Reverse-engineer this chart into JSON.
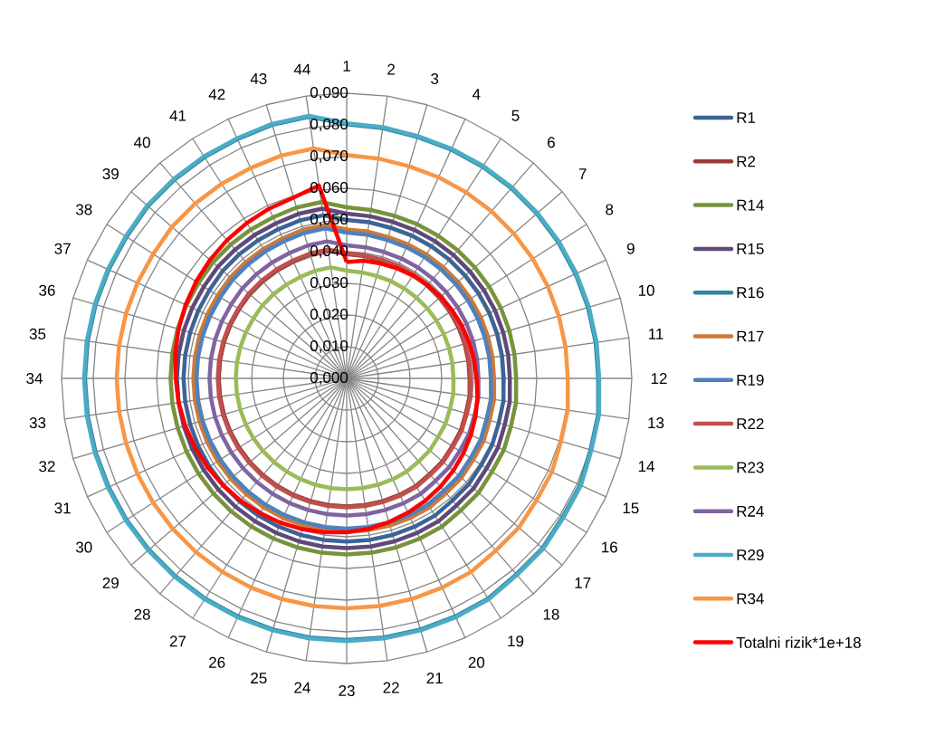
{
  "chart_data": {
    "type": "radar",
    "categories": [
      "1",
      "2",
      "3",
      "4",
      "5",
      "6",
      "7",
      "8",
      "9",
      "10",
      "11",
      "12",
      "13",
      "14",
      "15",
      "16",
      "17",
      "18",
      "19",
      "20",
      "21",
      "22",
      "23",
      "24",
      "25",
      "26",
      "27",
      "28",
      "29",
      "30",
      "31",
      "32",
      "33",
      "34",
      "35",
      "36",
      "37",
      "38",
      "39",
      "40",
      "41",
      "42",
      "43",
      "44"
    ],
    "ylim": [
      0,
      0.09
    ],
    "yticks": [
      {
        "value": 0,
        "label": "0,000"
      },
      {
        "value": 0.01,
        "label": "0,010"
      },
      {
        "value": 0.02,
        "label": "0,020"
      },
      {
        "value": 0.03,
        "label": "0,030"
      },
      {
        "value": 0.04,
        "label": "0,040"
      },
      {
        "value": 0.05,
        "label": "0,050"
      },
      {
        "value": 0.06,
        "label": "0,060"
      },
      {
        "value": 0.07,
        "label": "0,070"
      },
      {
        "value": 0.08,
        "label": "0,080"
      },
      {
        "value": 0.09,
        "label": "0,090"
      }
    ],
    "grid": true,
    "legend": "right",
    "series": [
      {
        "name": "R1",
        "color": "#3c6496",
        "values": [
          0.05,
          0.0498,
          0.0495,
          0.0495,
          0.0495,
          0.0495,
          0.0495,
          0.0495,
          0.0495,
          0.0495,
          0.0495,
          0.0495,
          0.05,
          0.05,
          0.0505,
          0.0505,
          0.051,
          0.051,
          0.0515,
          0.0515,
          0.0515,
          0.0515,
          0.0515,
          0.0515,
          0.0515,
          0.0515,
          0.0515,
          0.0515,
          0.0515,
          0.0515,
          0.0515,
          0.0515,
          0.0515,
          0.0515,
          0.0515,
          0.0515,
          0.0515,
          0.0515,
          0.0518,
          0.0518,
          0.0518,
          0.0518,
          0.052,
          0.052
        ]
      },
      {
        "name": "R2",
        "color": "#9a3b38",
        "values": [
          0.0392,
          0.039,
          0.0388,
          0.0388,
          0.0388,
          0.0388,
          0.0388,
          0.0388,
          0.0388,
          0.0388,
          0.0388,
          0.0388,
          0.0392,
          0.0392,
          0.0396,
          0.0396,
          0.04,
          0.04,
          0.0404,
          0.0404,
          0.0404,
          0.0404,
          0.0404,
          0.0404,
          0.0404,
          0.0404,
          0.0404,
          0.0404,
          0.0404,
          0.0404,
          0.0404,
          0.0404,
          0.0404,
          0.0404,
          0.0404,
          0.0404,
          0.0404,
          0.0404,
          0.0406,
          0.0406,
          0.0406,
          0.0406,
          0.0408,
          0.0408
        ]
      },
      {
        "name": "R14",
        "color": "#77933c",
        "values": [
          0.054,
          0.0537,
          0.0535,
          0.0535,
          0.0535,
          0.0535,
          0.0535,
          0.0535,
          0.0535,
          0.0535,
          0.0535,
          0.0535,
          0.054,
          0.054,
          0.0545,
          0.0545,
          0.0551,
          0.0551,
          0.0556,
          0.0556,
          0.0556,
          0.0556,
          0.0556,
          0.0556,
          0.0556,
          0.0556,
          0.0556,
          0.0556,
          0.0556,
          0.0556,
          0.0556,
          0.0556,
          0.0556,
          0.0556,
          0.0556,
          0.0556,
          0.0556,
          0.0556,
          0.0559,
          0.0559,
          0.0559,
          0.0559,
          0.0562,
          0.0562
        ]
      },
      {
        "name": "R15",
        "color": "#5f497a",
        "values": [
          0.052,
          0.0517,
          0.0515,
          0.0515,
          0.0515,
          0.0515,
          0.0515,
          0.0515,
          0.0515,
          0.0515,
          0.0515,
          0.0515,
          0.052,
          0.052,
          0.0525,
          0.0525,
          0.053,
          0.053,
          0.0536,
          0.0536,
          0.0536,
          0.0536,
          0.0536,
          0.0536,
          0.0536,
          0.0536,
          0.0536,
          0.0536,
          0.0536,
          0.0536,
          0.0536,
          0.0536,
          0.0536,
          0.0536,
          0.0536,
          0.0536,
          0.0536,
          0.0536,
          0.0538,
          0.0538,
          0.0538,
          0.0538,
          0.0541,
          0.0541
        ]
      },
      {
        "name": "R16",
        "color": "#31859c",
        "values": [
          0.0802,
          0.0798,
          0.0794,
          0.0794,
          0.0794,
          0.0794,
          0.0794,
          0.0794,
          0.0794,
          0.0794,
          0.0794,
          0.0794,
          0.0802,
          0.0802,
          0.081,
          0.081,
          0.0818,
          0.0818,
          0.0826,
          0.0826,
          0.0826,
          0.0826,
          0.0826,
          0.0826,
          0.0826,
          0.0826,
          0.0826,
          0.0826,
          0.0826,
          0.0826,
          0.0826,
          0.0826,
          0.0826,
          0.0826,
          0.0826,
          0.0826,
          0.0826,
          0.0826,
          0.083,
          0.083,
          0.083,
          0.083,
          0.0834,
          0.0834
        ]
      },
      {
        "name": "R17",
        "color": "#cc7a3a",
        "values": [
          0.047,
          0.0468,
          0.0465,
          0.0465,
          0.0465,
          0.0465,
          0.0465,
          0.0465,
          0.0465,
          0.0465,
          0.0465,
          0.0465,
          0.047,
          0.047,
          0.0475,
          0.0475,
          0.0479,
          0.0479,
          0.0484,
          0.0484,
          0.0484,
          0.0484,
          0.0484,
          0.0484,
          0.0484,
          0.0484,
          0.0484,
          0.0484,
          0.0484,
          0.0484,
          0.0484,
          0.0484,
          0.0484,
          0.0484,
          0.0484,
          0.0484,
          0.0484,
          0.0484,
          0.0486,
          0.0486,
          0.0486,
          0.0486,
          0.0489,
          0.0489
        ]
      },
      {
        "name": "R19",
        "color": "#4f81bd",
        "values": [
          0.046,
          0.0458,
          0.0455,
          0.0455,
          0.0455,
          0.0455,
          0.0455,
          0.0455,
          0.0455,
          0.0455,
          0.0455,
          0.0455,
          0.046,
          0.046,
          0.0465,
          0.0465,
          0.0469,
          0.0469,
          0.0474,
          0.0474,
          0.0474,
          0.0474,
          0.0474,
          0.0474,
          0.0474,
          0.0474,
          0.0474,
          0.0474,
          0.0474,
          0.0474,
          0.0474,
          0.0474,
          0.0474,
          0.0474,
          0.0474,
          0.0474,
          0.0474,
          0.0474,
          0.0476,
          0.0476,
          0.0476,
          0.0476,
          0.0478,
          0.0478
        ]
      },
      {
        "name": "R22",
        "color": "#c0504d",
        "values": [
          0.0395,
          0.0393,
          0.0391,
          0.0391,
          0.0391,
          0.0391,
          0.0391,
          0.0391,
          0.0391,
          0.0391,
          0.0391,
          0.0391,
          0.0395,
          0.0395,
          0.0399,
          0.0399,
          0.0403,
          0.0403,
          0.0407,
          0.0407,
          0.0407,
          0.0407,
          0.0407,
          0.0407,
          0.0407,
          0.0407,
          0.0407,
          0.0407,
          0.0407,
          0.0407,
          0.0407,
          0.0407,
          0.0407,
          0.0407,
          0.0407,
          0.0407,
          0.0407,
          0.0407,
          0.0409,
          0.0409,
          0.0409,
          0.0409,
          0.0411,
          0.0411
        ]
      },
      {
        "name": "R23",
        "color": "#9bbb59",
        "values": [
          0.034,
          0.0338,
          0.0337,
          0.0337,
          0.0337,
          0.0337,
          0.0337,
          0.0337,
          0.0337,
          0.0337,
          0.0337,
          0.0337,
          0.034,
          0.034,
          0.0343,
          0.0343,
          0.0347,
          0.0347,
          0.035,
          0.035,
          0.035,
          0.035,
          0.035,
          0.035,
          0.035,
          0.035,
          0.035,
          0.035,
          0.035,
          0.035,
          0.035,
          0.035,
          0.035,
          0.035,
          0.035,
          0.035,
          0.035,
          0.035,
          0.0352,
          0.0352,
          0.0352,
          0.0352,
          0.0354,
          0.0354
        ]
      },
      {
        "name": "R24",
        "color": "#8064a2",
        "values": [
          0.042,
          0.0418,
          0.0416,
          0.0416,
          0.0416,
          0.0416,
          0.0416,
          0.0416,
          0.0416,
          0.0416,
          0.0416,
          0.0416,
          0.042,
          0.042,
          0.0424,
          0.0424,
          0.0428,
          0.0428,
          0.0433,
          0.0433,
          0.0433,
          0.0433,
          0.0433,
          0.0433,
          0.0433,
          0.0433,
          0.0433,
          0.0433,
          0.0433,
          0.0433,
          0.0433,
          0.0433,
          0.0433,
          0.0433,
          0.0433,
          0.0433,
          0.0433,
          0.0433,
          0.0435,
          0.0435,
          0.0435,
          0.0435,
          0.0437,
          0.0437
        ]
      },
      {
        "name": "R29",
        "color": "#4bacc6",
        "values": [
          0.0805,
          0.0801,
          0.0797,
          0.0797,
          0.0797,
          0.0797,
          0.0797,
          0.0797,
          0.0797,
          0.0797,
          0.0797,
          0.0797,
          0.0805,
          0.0805,
          0.0813,
          0.0813,
          0.0821,
          0.0821,
          0.0829,
          0.0829,
          0.0829,
          0.0829,
          0.0829,
          0.0829,
          0.0829,
          0.0829,
          0.0829,
          0.0829,
          0.0829,
          0.0829,
          0.0829,
          0.0829,
          0.0829,
          0.0829,
          0.0829,
          0.0829,
          0.0829,
          0.0829,
          0.0833,
          0.0833,
          0.0833,
          0.0833,
          0.0837,
          0.0837
        ]
      },
      {
        "name": "R34",
        "color": "#f79646",
        "values": [
          0.0705,
          0.0701,
          0.0698,
          0.0698,
          0.0698,
          0.0698,
          0.0698,
          0.0698,
          0.0698,
          0.0698,
          0.0698,
          0.0698,
          0.0705,
          0.0705,
          0.0712,
          0.0712,
          0.0719,
          0.0719,
          0.0726,
          0.0726,
          0.0726,
          0.0726,
          0.0726,
          0.0726,
          0.0726,
          0.0726,
          0.0726,
          0.0726,
          0.0726,
          0.0726,
          0.0726,
          0.0726,
          0.0726,
          0.0726,
          0.0726,
          0.0726,
          0.0726,
          0.0726,
          0.073,
          0.073,
          0.073,
          0.073,
          0.0733,
          0.0733
        ]
      },
      {
        "name": "Totalni rizik*1e+18",
        "color": "#ff0000",
        "values": [
          0.0367,
          0.0375,
          0.0378,
          0.0382,
          0.0386,
          0.039,
          0.0393,
          0.0396,
          0.04,
          0.0403,
          0.0406,
          0.041,
          0.0417,
          0.0424,
          0.0431,
          0.0438,
          0.0445,
          0.0452,
          0.0459,
          0.0466,
          0.0473,
          0.048,
          0.0486,
          0.0491,
          0.0496,
          0.0501,
          0.0506,
          0.0511,
          0.0516,
          0.0521,
          0.0526,
          0.0531,
          0.0536,
          0.054,
          0.0547,
          0.0553,
          0.0559,
          0.0565,
          0.0571,
          0.0577,
          0.0583,
          0.0589,
          0.0595,
          0.0615
        ]
      }
    ]
  }
}
